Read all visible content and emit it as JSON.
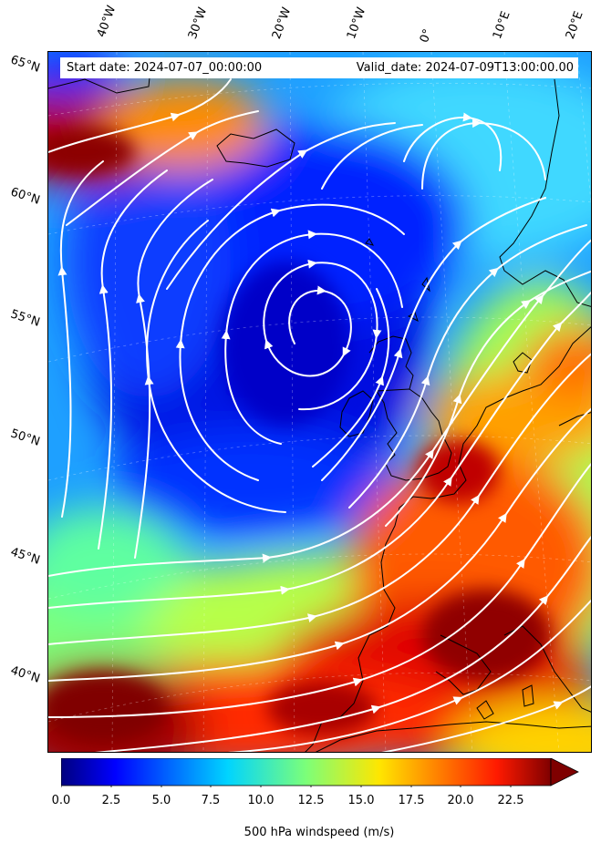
{
  "header": {
    "start_date": "Start date: 2024-07-07_00:00:00",
    "valid_date": "Valid_date: 2024-07-09T13:00:00.00"
  },
  "map": {
    "projection": "Lambert conformal (North Atlantic / Europe)",
    "field": "500 hPa windspeed",
    "overlay": "white streamlines",
    "coastline_color": "#000000",
    "lon_labels": [
      "40°W",
      "30°W",
      "20°W",
      "10°W",
      "0°",
      "10°E",
      "20°E"
    ],
    "lat_labels": [
      "65°N",
      "60°N",
      "55°N",
      "50°N",
      "45°N",
      "40°N"
    ]
  },
  "colorbar": {
    "label": "500 hPa windspeed (m/s)",
    "colormap": "jet",
    "vmin": 0,
    "vmax": 25,
    "extend": "max",
    "ticks": [
      "0.0",
      "2.5",
      "5.0",
      "7.5",
      "10.0",
      "12.5",
      "15.0",
      "17.5",
      "20.0",
      "22.5"
    ]
  }
}
